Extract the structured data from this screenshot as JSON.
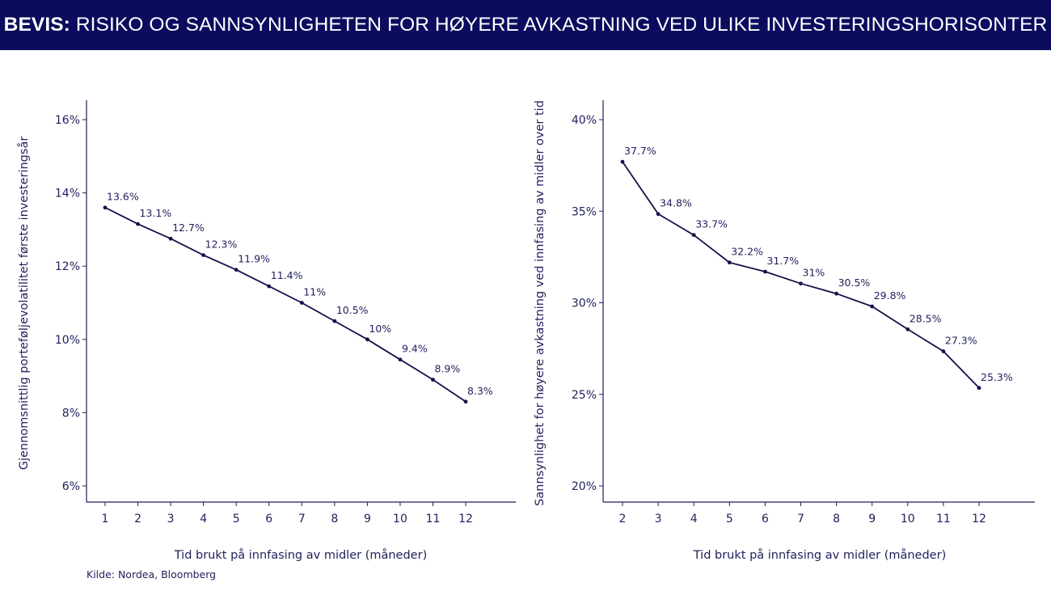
{
  "header": {
    "title_bold": "BEVIS:",
    "title_rest": " RISIKO OG SANNSYNLIGHETEN FOR HØYERE AVKASTNING VED ULIKE INVESTERINGSHORISONTER"
  },
  "source": "Kilde: Nordea, Bloomberg",
  "colors": {
    "header_bg": "#0c0c5e",
    "line": "#12124a",
    "text": "#1f1f5c"
  },
  "chart_data": [
    {
      "type": "line",
      "title": "",
      "xlabel": "Tid brukt på innfasing av midler (måneder)",
      "ylabel": "Gjennomsnittlig porteføljevolatilitet første investeringsår",
      "x": [
        1,
        2,
        3,
        4,
        5,
        6,
        7,
        8,
        9,
        10,
        11,
        12
      ],
      "values": [
        13.6,
        13.15,
        12.75,
        12.3,
        11.9,
        11.45,
        11.0,
        10.5,
        10.0,
        9.45,
        8.9,
        8.3
      ],
      "data_labels": [
        "13.6%",
        "13.1%",
        "12.7%",
        "12.3%",
        "11.9%",
        "11.4%",
        "11%",
        "10.5%",
        "10%",
        "9.4%",
        "8.9%",
        "8.3%"
      ],
      "ylim": [
        5.5,
        16.5
      ],
      "yticks": [
        6,
        8,
        10,
        12,
        14,
        16
      ],
      "ytick_labels": [
        "6%",
        "8%",
        "10%",
        "12%",
        "14%",
        "16%"
      ],
      "grid": false
    },
    {
      "type": "line",
      "title": "",
      "xlabel": "Tid brukt på innfasing av midler (måneder)",
      "ylabel": "Sannsynlighet for høyere avkastning ved innfasing av midler over tid",
      "x": [
        2,
        3,
        4,
        5,
        6,
        7,
        8,
        9,
        10,
        11,
        12
      ],
      "values": [
        37.7,
        34.85,
        33.7,
        32.2,
        31.7,
        31.05,
        30.5,
        29.8,
        28.55,
        27.35,
        25.35
      ],
      "data_labels": [
        "37.7%",
        "34.8%",
        "33.7%",
        "32.2%",
        "31.7%",
        "31%",
        "30.5%",
        "29.8%",
        "28.5%",
        "27.3%",
        "25.3%"
      ],
      "ylim": [
        19,
        41
      ],
      "yticks": [
        20,
        25,
        30,
        35,
        40
      ],
      "ytick_labels": [
        "20%",
        "25%",
        "30%",
        "35%",
        "40%"
      ],
      "grid": false
    }
  ]
}
